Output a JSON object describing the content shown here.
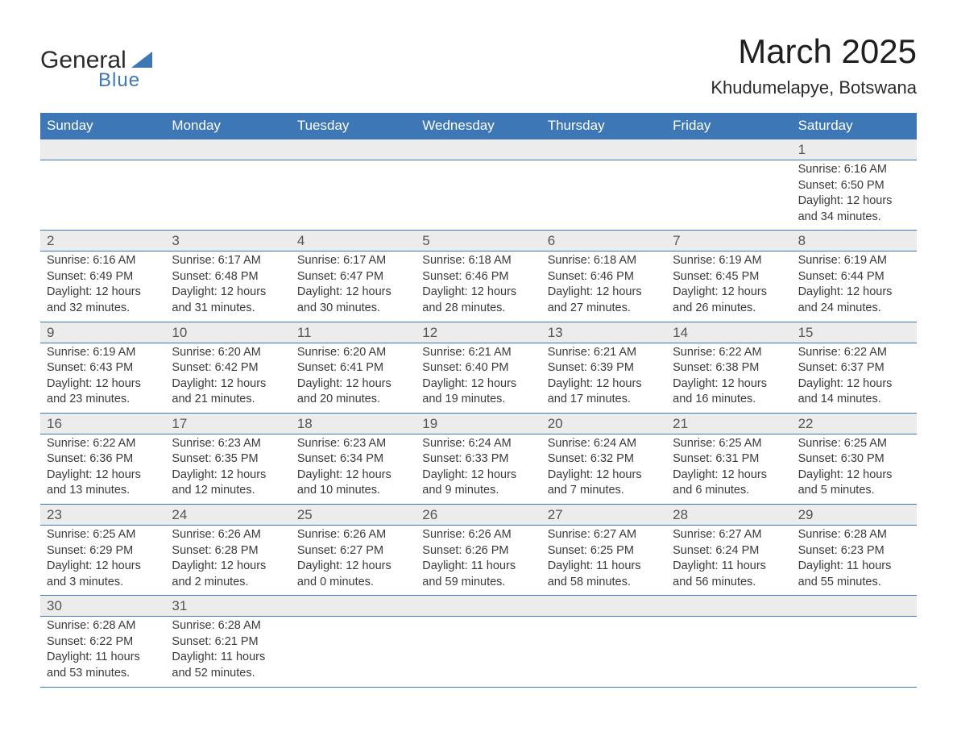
{
  "logo": {
    "text1": "General",
    "text2": "Blue"
  },
  "title": "March 2025",
  "location": "Khudumelapye, Botswana",
  "colors": {
    "header_bg": "#3d77b6",
    "header_text": "#ffffff",
    "daynum_bg": "#ececec",
    "text": "#3a3a3a",
    "border": "#3d77b6"
  },
  "weekdays": [
    "Sunday",
    "Monday",
    "Tuesday",
    "Wednesday",
    "Thursday",
    "Friday",
    "Saturday"
  ],
  "font": {
    "base_family": "Arial",
    "title_size_pt": 32,
    "body_size_pt": 11
  },
  "weeks": [
    [
      null,
      null,
      null,
      null,
      null,
      null,
      {
        "d": "1",
        "sr": "Sunrise: 6:16 AM",
        "ss": "Sunset: 6:50 PM",
        "dl1": "Daylight: 12 hours",
        "dl2": "and 34 minutes."
      }
    ],
    [
      {
        "d": "2",
        "sr": "Sunrise: 6:16 AM",
        "ss": "Sunset: 6:49 PM",
        "dl1": "Daylight: 12 hours",
        "dl2": "and 32 minutes."
      },
      {
        "d": "3",
        "sr": "Sunrise: 6:17 AM",
        "ss": "Sunset: 6:48 PM",
        "dl1": "Daylight: 12 hours",
        "dl2": "and 31 minutes."
      },
      {
        "d": "4",
        "sr": "Sunrise: 6:17 AM",
        "ss": "Sunset: 6:47 PM",
        "dl1": "Daylight: 12 hours",
        "dl2": "and 30 minutes."
      },
      {
        "d": "5",
        "sr": "Sunrise: 6:18 AM",
        "ss": "Sunset: 6:46 PM",
        "dl1": "Daylight: 12 hours",
        "dl2": "and 28 minutes."
      },
      {
        "d": "6",
        "sr": "Sunrise: 6:18 AM",
        "ss": "Sunset: 6:46 PM",
        "dl1": "Daylight: 12 hours",
        "dl2": "and 27 minutes."
      },
      {
        "d": "7",
        "sr": "Sunrise: 6:19 AM",
        "ss": "Sunset: 6:45 PM",
        "dl1": "Daylight: 12 hours",
        "dl2": "and 26 minutes."
      },
      {
        "d": "8",
        "sr": "Sunrise: 6:19 AM",
        "ss": "Sunset: 6:44 PM",
        "dl1": "Daylight: 12 hours",
        "dl2": "and 24 minutes."
      }
    ],
    [
      {
        "d": "9",
        "sr": "Sunrise: 6:19 AM",
        "ss": "Sunset: 6:43 PM",
        "dl1": "Daylight: 12 hours",
        "dl2": "and 23 minutes."
      },
      {
        "d": "10",
        "sr": "Sunrise: 6:20 AM",
        "ss": "Sunset: 6:42 PM",
        "dl1": "Daylight: 12 hours",
        "dl2": "and 21 minutes."
      },
      {
        "d": "11",
        "sr": "Sunrise: 6:20 AM",
        "ss": "Sunset: 6:41 PM",
        "dl1": "Daylight: 12 hours",
        "dl2": "and 20 minutes."
      },
      {
        "d": "12",
        "sr": "Sunrise: 6:21 AM",
        "ss": "Sunset: 6:40 PM",
        "dl1": "Daylight: 12 hours",
        "dl2": "and 19 minutes."
      },
      {
        "d": "13",
        "sr": "Sunrise: 6:21 AM",
        "ss": "Sunset: 6:39 PM",
        "dl1": "Daylight: 12 hours",
        "dl2": "and 17 minutes."
      },
      {
        "d": "14",
        "sr": "Sunrise: 6:22 AM",
        "ss": "Sunset: 6:38 PM",
        "dl1": "Daylight: 12 hours",
        "dl2": "and 16 minutes."
      },
      {
        "d": "15",
        "sr": "Sunrise: 6:22 AM",
        "ss": "Sunset: 6:37 PM",
        "dl1": "Daylight: 12 hours",
        "dl2": "and 14 minutes."
      }
    ],
    [
      {
        "d": "16",
        "sr": "Sunrise: 6:22 AM",
        "ss": "Sunset: 6:36 PM",
        "dl1": "Daylight: 12 hours",
        "dl2": "and 13 minutes."
      },
      {
        "d": "17",
        "sr": "Sunrise: 6:23 AM",
        "ss": "Sunset: 6:35 PM",
        "dl1": "Daylight: 12 hours",
        "dl2": "and 12 minutes."
      },
      {
        "d": "18",
        "sr": "Sunrise: 6:23 AM",
        "ss": "Sunset: 6:34 PM",
        "dl1": "Daylight: 12 hours",
        "dl2": "and 10 minutes."
      },
      {
        "d": "19",
        "sr": "Sunrise: 6:24 AM",
        "ss": "Sunset: 6:33 PM",
        "dl1": "Daylight: 12 hours",
        "dl2": "and 9 minutes."
      },
      {
        "d": "20",
        "sr": "Sunrise: 6:24 AM",
        "ss": "Sunset: 6:32 PM",
        "dl1": "Daylight: 12 hours",
        "dl2": "and 7 minutes."
      },
      {
        "d": "21",
        "sr": "Sunrise: 6:25 AM",
        "ss": "Sunset: 6:31 PM",
        "dl1": "Daylight: 12 hours",
        "dl2": "and 6 minutes."
      },
      {
        "d": "22",
        "sr": "Sunrise: 6:25 AM",
        "ss": "Sunset: 6:30 PM",
        "dl1": "Daylight: 12 hours",
        "dl2": "and 5 minutes."
      }
    ],
    [
      {
        "d": "23",
        "sr": "Sunrise: 6:25 AM",
        "ss": "Sunset: 6:29 PM",
        "dl1": "Daylight: 12 hours",
        "dl2": "and 3 minutes."
      },
      {
        "d": "24",
        "sr": "Sunrise: 6:26 AM",
        "ss": "Sunset: 6:28 PM",
        "dl1": "Daylight: 12 hours",
        "dl2": "and 2 minutes."
      },
      {
        "d": "25",
        "sr": "Sunrise: 6:26 AM",
        "ss": "Sunset: 6:27 PM",
        "dl1": "Daylight: 12 hours",
        "dl2": "and 0 minutes."
      },
      {
        "d": "26",
        "sr": "Sunrise: 6:26 AM",
        "ss": "Sunset: 6:26 PM",
        "dl1": "Daylight: 11 hours",
        "dl2": "and 59 minutes."
      },
      {
        "d": "27",
        "sr": "Sunrise: 6:27 AM",
        "ss": "Sunset: 6:25 PM",
        "dl1": "Daylight: 11 hours",
        "dl2": "and 58 minutes."
      },
      {
        "d": "28",
        "sr": "Sunrise: 6:27 AM",
        "ss": "Sunset: 6:24 PM",
        "dl1": "Daylight: 11 hours",
        "dl2": "and 56 minutes."
      },
      {
        "d": "29",
        "sr": "Sunrise: 6:28 AM",
        "ss": "Sunset: 6:23 PM",
        "dl1": "Daylight: 11 hours",
        "dl2": "and 55 minutes."
      }
    ],
    [
      {
        "d": "30",
        "sr": "Sunrise: 6:28 AM",
        "ss": "Sunset: 6:22 PM",
        "dl1": "Daylight: 11 hours",
        "dl2": "and 53 minutes."
      },
      {
        "d": "31",
        "sr": "Sunrise: 6:28 AM",
        "ss": "Sunset: 6:21 PM",
        "dl1": "Daylight: 11 hours",
        "dl2": "and 52 minutes."
      },
      null,
      null,
      null,
      null,
      null
    ]
  ]
}
